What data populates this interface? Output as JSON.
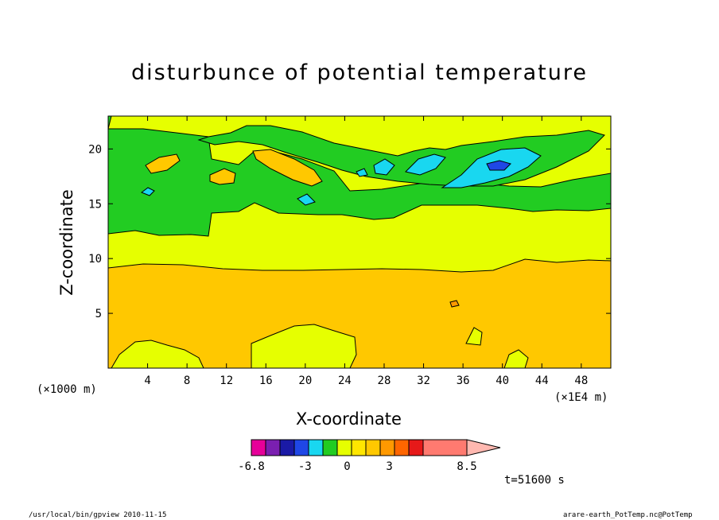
{
  "chart_data": {
    "type": "heatmap",
    "title": "disturbunce of potential temperature",
    "xlabel": "X-coordinate",
    "ylabel": "Z-coordinate",
    "x_unit_left": "(×1000 m)",
    "x_unit_right": "(×1E4 m)",
    "x_ticks": [
      "4",
      "8",
      "12",
      "16",
      "20",
      "24",
      "28",
      "32",
      "36",
      "40",
      "44",
      "48"
    ],
    "x_tick_values": [
      4,
      8,
      12,
      16,
      20,
      24,
      28,
      32,
      36,
      40,
      44,
      48
    ],
    "y_ticks": [
      "5",
      "10",
      "15",
      "20"
    ],
    "y_tick_values": [
      5,
      10,
      15,
      20
    ],
    "xlim": [
      0,
      51
    ],
    "ylim": [
      0,
      23
    ],
    "time_label": "t=51600 s",
    "colorbar": {
      "colors": [
        "#e60099",
        "#7a1fb0",
        "#1a1aa6",
        "#1f47e6",
        "#19d7f0",
        "#22cc22",
        "#e6ff00",
        "#ffe600",
        "#ffc800",
        "#ff9900",
        "#ff6600",
        "#e61919",
        "#ff7a70"
      ],
      "extend_color": "#ffb8b0",
      "tick_labels": [
        "-6.8",
        "-3",
        "0",
        "3",
        "8.5"
      ],
      "tick_values": [
        -6.8,
        -3,
        0,
        3,
        8.5
      ]
    },
    "contour_fields": {
      "band_near_surface": 9.5,
      "band_mid_top": 12.5,
      "band_upper_green": 22
    }
  },
  "footer": {
    "left": "/usr/local/bin/gpview  2010-11-15",
    "right": "arare-earth_PotTemp.nc@PotTemp"
  }
}
